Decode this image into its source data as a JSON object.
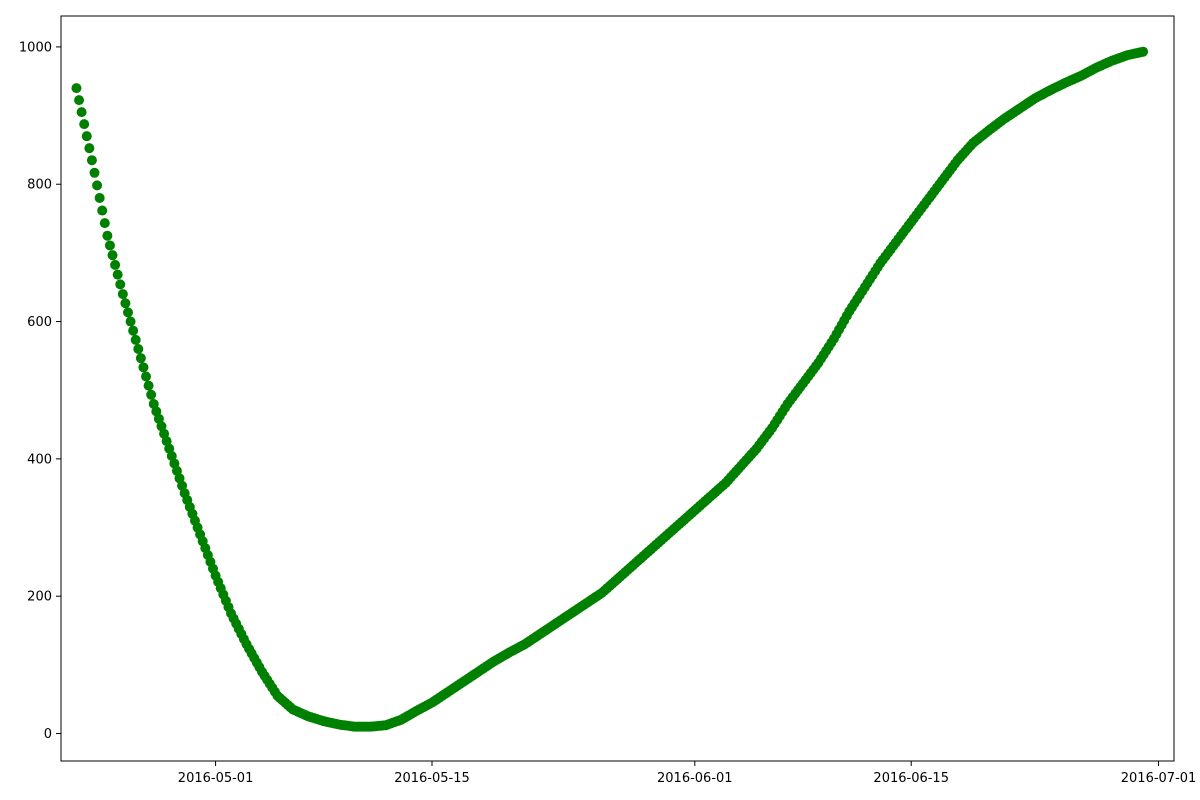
{
  "chart_data": {
    "type": "scatter",
    "title": "",
    "xlabel": "",
    "ylabel": "",
    "x_axis": "date",
    "xlim": [
      "2016-04-21",
      "2016-07-02"
    ],
    "ylim": [
      -40,
      1045
    ],
    "x_ticks": [
      "2016-05-01",
      "2016-05-15",
      "2016-06-01",
      "2016-06-15",
      "2016-07-01"
    ],
    "y_ticks": [
      0,
      200,
      400,
      600,
      800,
      1000
    ],
    "grid": false,
    "legend": "none",
    "marker_color": "#008000",
    "series": [
      {
        "x": [
          "2016-04-22",
          "2016-04-23",
          "2016-04-24",
          "2016-04-25",
          "2016-04-26",
          "2016-04-27",
          "2016-04-28",
          "2016-04-29",
          "2016-04-30",
          "2016-05-01",
          "2016-05-02",
          "2016-05-03",
          "2016-05-04",
          "2016-05-05",
          "2016-05-06",
          "2016-05-07",
          "2016-05-08",
          "2016-05-09",
          "2016-05-10",
          "2016-05-11",
          "2016-05-12",
          "2016-05-13",
          "2016-05-14",
          "2016-05-15",
          "2016-05-16",
          "2016-05-17",
          "2016-05-18",
          "2016-05-19",
          "2016-05-20",
          "2016-05-21",
          "2016-05-22",
          "2016-05-23",
          "2016-05-24",
          "2016-05-25",
          "2016-05-26",
          "2016-05-27",
          "2016-05-28",
          "2016-05-29",
          "2016-05-30",
          "2016-05-31",
          "2016-06-01",
          "2016-06-02",
          "2016-06-03",
          "2016-06-04",
          "2016-06-05",
          "2016-06-06",
          "2016-06-07",
          "2016-06-08",
          "2016-06-09",
          "2016-06-10",
          "2016-06-11",
          "2016-06-12",
          "2016-06-13",
          "2016-06-14",
          "2016-06-15",
          "2016-06-16",
          "2016-06-17",
          "2016-06-18",
          "2016-06-19",
          "2016-06-20",
          "2016-06-21",
          "2016-06-22",
          "2016-06-23",
          "2016-06-24",
          "2016-06-25",
          "2016-06-26",
          "2016-06-27",
          "2016-06-28",
          "2016-06-29",
          "2016-06-30"
        ],
        "y": [
          940,
          835,
          725,
          640,
          560,
          480,
          415,
          350,
          290,
          230,
          175,
          130,
          90,
          55,
          35,
          25,
          18,
          13,
          10,
          10,
          12,
          20,
          33,
          45,
          60,
          75,
          90,
          105,
          118,
          130,
          145,
          160,
          175,
          190,
          205,
          225,
          245,
          265,
          285,
          305,
          325,
          345,
          365,
          390,
          415,
          445,
          480,
          510,
          540,
          575,
          615,
          650,
          685,
          715,
          745,
          775,
          805,
          835,
          860,
          878,
          895,
          910,
          925,
          937,
          948,
          958,
          970,
          980,
          988,
          993
        ]
      }
    ]
  }
}
